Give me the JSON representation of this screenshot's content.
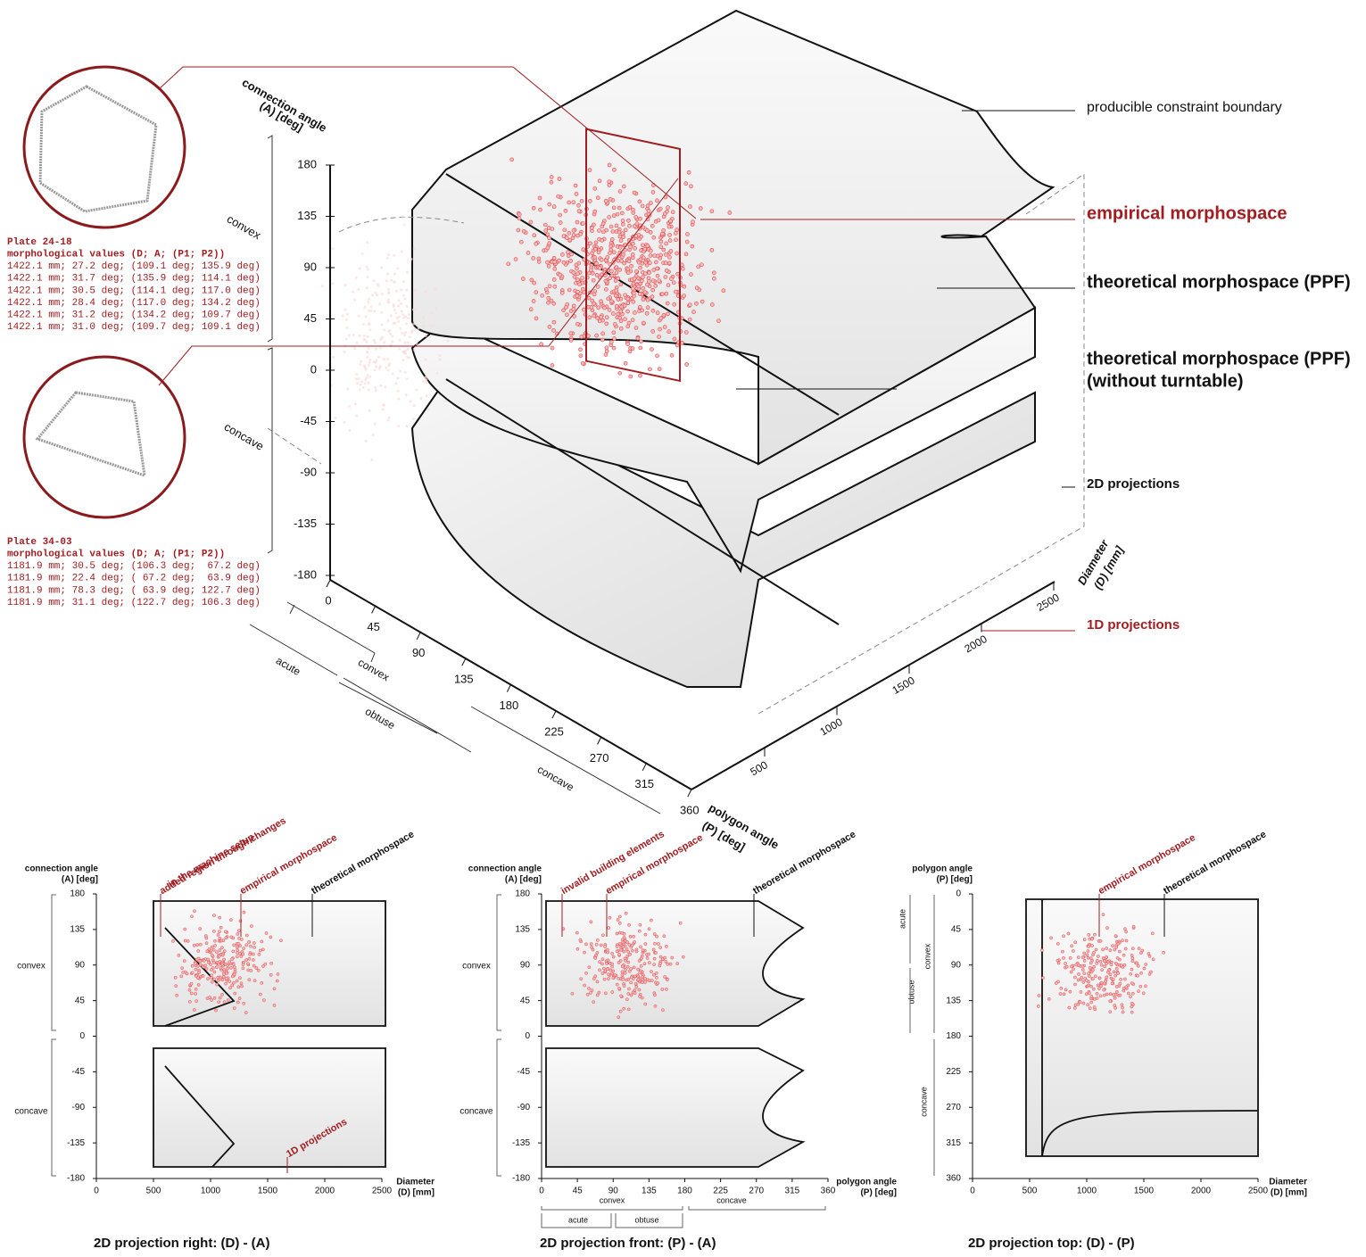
{
  "legend": {
    "boundary": "producible constraint boundary",
    "empirical": "empirical morphospace",
    "theoretical": "theoretical morphospace (PPF)",
    "theoretical_nt": [
      "theoretical morphospace (PPF)",
      "(without turntable)"
    ],
    "proj2d": "2D projections",
    "proj1d": "1D projections"
  },
  "axis3d": {
    "a_title": [
      "connection angle",
      "(A) [deg]"
    ],
    "a_ticks": [
      180,
      135,
      90,
      45,
      0,
      -45,
      -90,
      -135,
      -180
    ],
    "a_groups": [
      "convex",
      "concave"
    ],
    "p_title": [
      "polygon angle",
      "(P) [deg]"
    ],
    "p_ticks": [
      0,
      45,
      90,
      135,
      180,
      225,
      270,
      315,
      360
    ],
    "p_groups": [
      "acute",
      "convex",
      "obtuse",
      "concave"
    ],
    "d_title": [
      "Diameter",
      "(D) [mm]"
    ],
    "d_ticks": [
      500,
      1000,
      1500,
      2000,
      2500
    ]
  },
  "plates": [
    {
      "title": "Plate 24-18",
      "header": "morphological values (D; A; (P1; P2))",
      "rows": [
        "1422.1 mm; 27.2 deg; (109.1 deg; 135.9 deg)",
        "1422.1 mm; 31.7 deg; (135.9 deg; 114.1 deg)",
        "1422.1 mm; 30.5 deg; (114.1 deg; 117.0 deg)",
        "1422.1 mm; 28.4 deg; (117.0 deg; 134.2 deg)",
        "1422.1 mm; 31.2 deg; (134.2 deg; 109.7 deg)",
        "1422.1 mm; 31.0 deg; (109.7 deg; 109.1 deg)"
      ]
    },
    {
      "title": "Plate 34-03",
      "header": "morphological values (D; A; (P1; P2))",
      "rows": [
        "1181.9 mm; 30.5 deg; (106.3 deg;  67.2 deg)",
        "1181.9 mm; 22.4 deg; ( 67.2 deg;  63.9 deg)",
        "1181.9 mm; 78.3 deg; ( 63.9 deg; 122.7 deg)",
        "1181.9 mm; 31.1 deg; (122.7 deg; 106.3 deg)"
      ]
    }
  ],
  "projections": [
    {
      "caption": "2D projection right: (D) - (A)",
      "y_title": [
        "connection angle",
        "(A) [deg]"
      ],
      "y_ticks": [
        180,
        135,
        90,
        45,
        0,
        -45,
        -90,
        -135,
        -180
      ],
      "y_groups": [
        "convex",
        "concave"
      ],
      "x_title": [
        "Diameter",
        "(D) [mm]"
      ],
      "x_ticks": [
        0,
        500,
        1000,
        1500,
        2000,
        2500
      ],
      "x_groups": [],
      "annotations": [
        [
          "added region through changes",
          "in the machine setup"
        ],
        [
          "empirical morphospace"
        ],
        [
          "theoretical morphospace"
        ],
        [
          "1D projections"
        ]
      ]
    },
    {
      "caption": "2D projection front: (P) - (A)",
      "y_title": [
        "connection angle",
        "(A) [deg]"
      ],
      "y_ticks": [
        180,
        135,
        90,
        45,
        0,
        -45,
        -90,
        -135,
        -180
      ],
      "y_groups": [
        "convex",
        "concave"
      ],
      "x_title": [
        "polygon angle",
        "(P) [deg]"
      ],
      "x_ticks": [
        0,
        45,
        90,
        135,
        180,
        225,
        270,
        315,
        360
      ],
      "x_groups": [
        "convex",
        "concave",
        "acute",
        "obtuse"
      ],
      "annotations": [
        [
          "invalid building elements"
        ],
        [
          "empirical morphospace"
        ],
        [
          "theoretical morphospace"
        ]
      ]
    },
    {
      "caption": "2D projection top: (D) - (P)",
      "y_title": [
        "polygon angle",
        "(P) [deg]"
      ],
      "y_ticks": [
        0,
        45,
        90,
        135,
        180,
        225,
        270,
        315,
        360
      ],
      "y_groups": [
        "acute",
        "obtuse",
        "convex",
        "concave"
      ],
      "x_title": [
        "Diameter",
        "(D) [mm]"
      ],
      "x_ticks": [
        0,
        500,
        1000,
        1500,
        2000,
        2500
      ],
      "x_groups": [],
      "annotations": [
        [
          "empirical morphospace"
        ],
        [
          "theoretical morphospace"
        ]
      ]
    }
  ]
}
